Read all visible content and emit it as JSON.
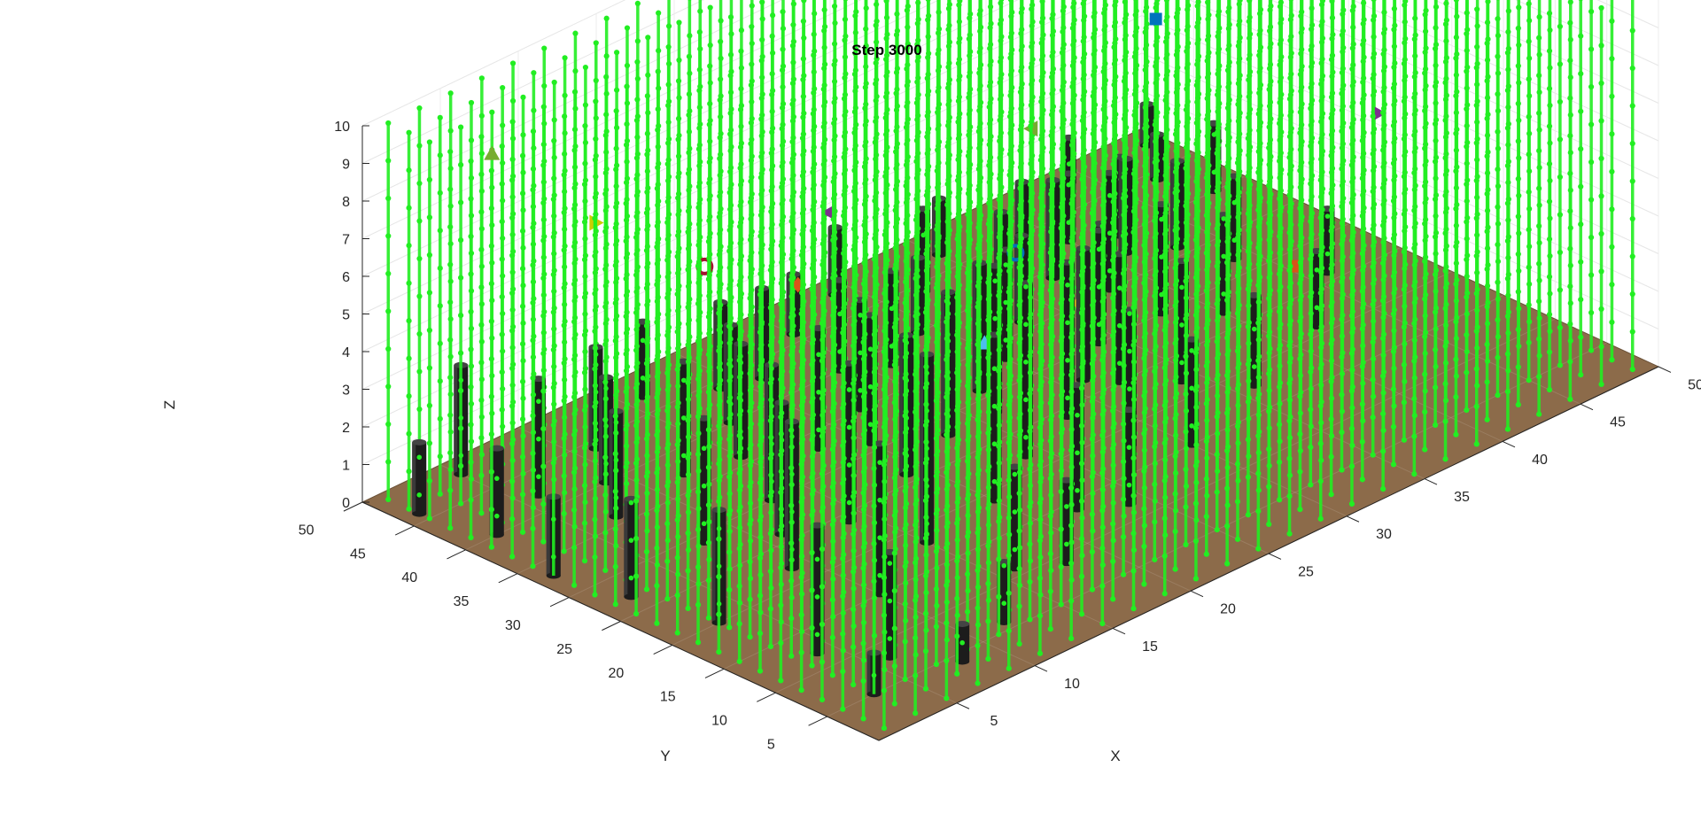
{
  "chart_data": {
    "type": "scatter3d",
    "title": "Step 3000",
    "xlabel": "X",
    "ylabel": "Y",
    "zlabel": "Z",
    "xlim": [
      0,
      50
    ],
    "ylim": [
      0,
      50
    ],
    "zlim": [
      0,
      10
    ],
    "x_ticks": [
      "5",
      "10",
      "15",
      "20",
      "25",
      "30",
      "35",
      "40",
      "45",
      "50"
    ],
    "y_ticks": [
      "5",
      "10",
      "15",
      "20",
      "25",
      "30",
      "35",
      "40",
      "45",
      "50"
    ],
    "z_ticks": [
      "0",
      "1",
      "2",
      "3",
      "4",
      "5",
      "6",
      "7",
      "8",
      "9",
      "10"
    ],
    "grid": true,
    "ground_color": "#8c6b4a",
    "point_color": "#22ee22",
    "obstacle_color": "#1c1c1c",
    "free_points": "uniform lattice of points over x=1..50, y=1..50, z=0..10 (unit spacing) excluding obstacle cells",
    "obstacles": [
      {
        "x": 49,
        "y": 48,
        "h": 1.1
      },
      {
        "x": 44,
        "y": 48,
        "h": 1.2
      },
      {
        "x": 48,
        "y": 40,
        "h": 1.8
      },
      {
        "x": 47,
        "y": 44,
        "h": 1.2
      },
      {
        "x": 42,
        "y": 40,
        "h": 2.1
      },
      {
        "x": 41,
        "y": 38,
        "h": 2.5
      },
      {
        "x": 40,
        "y": 42,
        "h": 1.8
      },
      {
        "x": 39,
        "y": 45,
        "h": 1.4
      },
      {
        "x": 38,
        "y": 35,
        "h": 3.1
      },
      {
        "x": 37,
        "y": 39,
        "h": 2.6
      },
      {
        "x": 36,
        "y": 33,
        "h": 2.4
      },
      {
        "x": 35,
        "y": 41,
        "h": 1.9
      },
      {
        "x": 34,
        "y": 30,
        "h": 3.0
      },
      {
        "x": 33,
        "y": 36,
        "h": 2.3
      },
      {
        "x": 32,
        "y": 44,
        "h": 2.2
      },
      {
        "x": 31,
        "y": 27,
        "h": 3.5
      },
      {
        "x": 30,
        "y": 33,
        "h": 2.9
      },
      {
        "x": 29,
        "y": 40,
        "h": 2.0
      },
      {
        "x": 28,
        "y": 24,
        "h": 4.1
      },
      {
        "x": 27,
        "y": 31,
        "h": 3.4
      },
      {
        "x": 26,
        "y": 38,
        "h": 2.5
      },
      {
        "x": 25,
        "y": 46,
        "h": 1.6
      },
      {
        "x": 24,
        "y": 22,
        "h": 4.6
      },
      {
        "x": 23,
        "y": 28,
        "h": 3.8
      },
      {
        "x": 22,
        "y": 35,
        "h": 2.9
      },
      {
        "x": 21,
        "y": 43,
        "h": 2.4
      },
      {
        "x": 20,
        "y": 19,
        "h": 4.4
      },
      {
        "x": 19,
        "y": 26,
        "h": 3.7
      },
      {
        "x": 18,
        "y": 33,
        "h": 3.2
      },
      {
        "x": 17,
        "y": 40,
        "h": 2.6
      },
      {
        "x": 16,
        "y": 47,
        "h": 2.0
      },
      {
        "x": 15,
        "y": 18,
        "h": 5.0
      },
      {
        "x": 14,
        "y": 24,
        "h": 4.2
      },
      {
        "x": 13,
        "y": 30,
        "h": 3.6
      },
      {
        "x": 12,
        "y": 37,
        "h": 3.0
      },
      {
        "x": 11,
        "y": 44,
        "h": 2.7
      },
      {
        "x": 10,
        "y": 15,
        "h": 4.0
      },
      {
        "x": 9,
        "y": 22,
        "h": 3.9
      },
      {
        "x": 8,
        "y": 29,
        "h": 3.3
      },
      {
        "x": 7,
        "y": 36,
        "h": 2.8
      },
      {
        "x": 6,
        "y": 42,
        "h": 3.1
      },
      {
        "x": 5,
        "y": 48,
        "h": 2.9
      },
      {
        "x": 4,
        "y": 12,
        "h": 3.4
      },
      {
        "x": 3,
        "y": 20,
        "h": 3.0
      },
      {
        "x": 2,
        "y": 27,
        "h": 2.6
      },
      {
        "x": 1,
        "y": 33,
        "h": 2.1
      },
      {
        "x": 2,
        "y": 40,
        "h": 2.3
      },
      {
        "x": 1,
        "y": 46,
        "h": 1.9
      },
      {
        "x": 6,
        "y": 8,
        "h": 2.8
      },
      {
        "x": 3,
        "y": 5,
        "h": 1.1
      },
      {
        "x": 8,
        "y": 4,
        "h": 1.0
      },
      {
        "x": 12,
        "y": 6,
        "h": 1.6
      },
      {
        "x": 18,
        "y": 9,
        "h": 2.2
      },
      {
        "x": 24,
        "y": 12,
        "h": 2.5
      },
      {
        "x": 30,
        "y": 15,
        "h": 2.8
      },
      {
        "x": 36,
        "y": 18,
        "h": 2.4
      },
      {
        "x": 42,
        "y": 21,
        "h": 2.0
      },
      {
        "x": 46,
        "y": 26,
        "h": 1.7
      },
      {
        "x": 44,
        "y": 32,
        "h": 2.2
      },
      {
        "x": 40,
        "y": 27,
        "h": 2.6
      },
      {
        "x": 34,
        "y": 22,
        "h": 3.2
      },
      {
        "x": 28,
        "y": 18,
        "h": 3.6
      },
      {
        "x": 22,
        "y": 14,
        "h": 3.3
      },
      {
        "x": 16,
        "y": 11,
        "h": 2.7
      },
      {
        "x": 11,
        "y": 26,
        "h": 3.5
      },
      {
        "x": 20,
        "y": 31,
        "h": 3.4
      },
      {
        "x": 26,
        "y": 28,
        "h": 3.9
      },
      {
        "x": 32,
        "y": 25,
        "h": 3.4
      },
      {
        "x": 38,
        "y": 30,
        "h": 2.9
      },
      {
        "x": 43,
        "y": 36,
        "h": 2.3
      },
      {
        "x": 24,
        "y": 40,
        "h": 2.4
      },
      {
        "x": 15,
        "y": 36,
        "h": 3.0
      },
      {
        "x": 9,
        "y": 40,
        "h": 2.8
      },
      {
        "x": 19,
        "y": 44,
        "h": 2.3
      },
      {
        "x": 29,
        "y": 48,
        "h": 1.8
      },
      {
        "x": 35,
        "y": 47,
        "h": 1.5
      }
    ],
    "markers": [
      {
        "shape": "circle",
        "color": "#0072bd",
        "x": 26,
        "y": 26,
        "z": 4.5
      },
      {
        "shape": "square",
        "color": "#0072bd",
        "x": 33,
        "y": 23,
        "z": 9.7
      },
      {
        "shape": "triangle-left",
        "color": "#77ac30",
        "x": 27,
        "y": 26,
        "z": 7.6
      },
      {
        "shape": "triangle-up",
        "color": "#4dbeee",
        "x": 24,
        "y": 26,
        "z": 2.5
      },
      {
        "shape": "triangle-up",
        "color": "#77ac30",
        "x": 5,
        "y": 45,
        "z": 8.9
      },
      {
        "shape": "triangle-left",
        "color": "#7e2f8e",
        "x": 18,
        "y": 32,
        "z": 6.4
      },
      {
        "shape": "triangle-right",
        "color": "#7e2f8e",
        "x": 40,
        "y": 12,
        "z": 7.2
      },
      {
        "shape": "triangle-right",
        "color": "#cccc00",
        "x": 11,
        "y": 44,
        "z": 6.0
      },
      {
        "shape": "circle",
        "color": "#a2142f",
        "x": 14,
        "y": 38,
        "z": 5.0
      },
      {
        "shape": "diamond",
        "color": "#d95319",
        "x": 18,
        "y": 35,
        "z": 4.1
      },
      {
        "shape": "diamond",
        "color": "#edb120",
        "x": 34,
        "y": 32,
        "z": 0.8
      },
      {
        "shape": "square",
        "color": "#d95319",
        "x": 38,
        "y": 17,
        "z": 2.9
      }
    ]
  }
}
